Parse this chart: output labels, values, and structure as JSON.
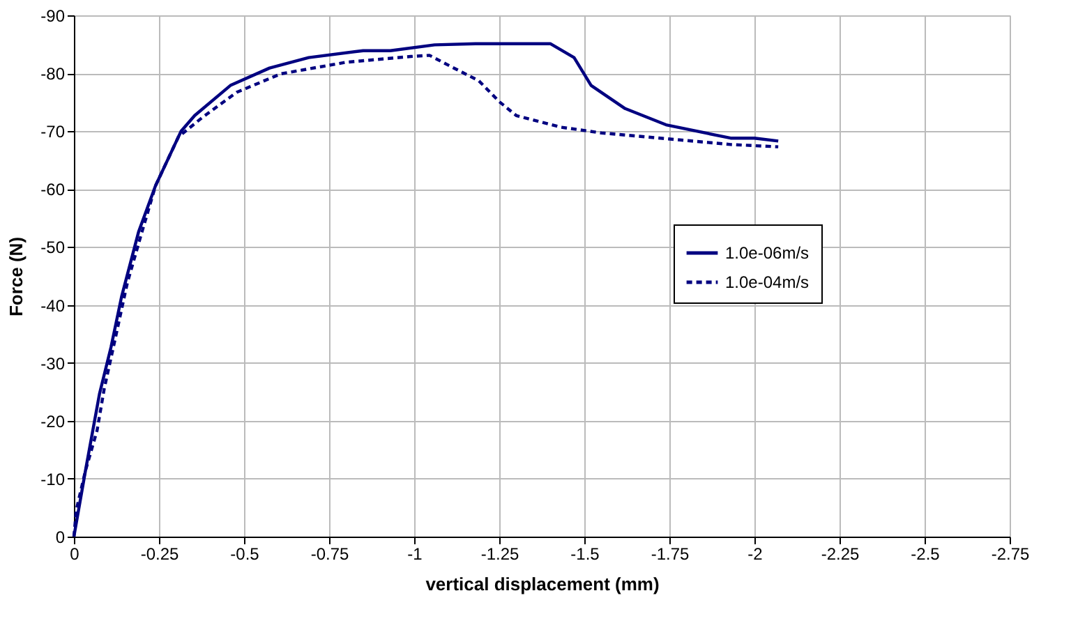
{
  "chart_data": {
    "type": "line",
    "xlabel": "vertical displacement (mm)",
    "ylabel": "Force (N)",
    "xlim": [
      0,
      -2.75
    ],
    "ylim": [
      0,
      -90
    ],
    "xticks": [
      0,
      -0.25,
      -0.5,
      -0.75,
      -1,
      -1.25,
      -1.5,
      -1.75,
      -2,
      -2.25,
      -2.5,
      -2.75
    ],
    "yticks": [
      0,
      -10,
      -20,
      -30,
      -40,
      -50,
      -60,
      -70,
      -80,
      -90
    ],
    "grid": true,
    "legend": "right",
    "marker": "none",
    "series": [
      {
        "name": "1.0e-06m/s",
        "color": "#000080",
        "line_style": "solid",
        "x": [
          0,
          -0.034,
          -0.075,
          -0.109,
          -0.14,
          -0.19,
          -0.24,
          -0.315,
          -0.355,
          -0.46,
          -0.575,
          -0.69,
          -0.85,
          -0.93,
          -1.06,
          -1.18,
          -1.4,
          -1.47,
          -1.52,
          -1.62,
          -1.74,
          -1.93,
          -2.0,
          -2.07
        ],
        "values": [
          0,
          -11.4,
          -24.6,
          -32.7,
          -41.4,
          -52.6,
          -60.6,
          -70,
          -72.7,
          -77.9,
          -80.9,
          -82.7,
          -83.9,
          -83.9,
          -84.9,
          -85.1,
          -85.1,
          -82.7,
          -77.9,
          -73.9,
          -71.1,
          -68.8,
          -68.8,
          -68.3
        ]
      },
      {
        "name": "1.0e-04m/s",
        "color": "#000080",
        "line_style": "dotted",
        "x": [
          0,
          -0.007,
          -0.034,
          -0.068,
          -0.089,
          -0.116,
          -0.157,
          -0.198,
          -0.24,
          -0.307,
          -0.376,
          -0.478,
          -0.608,
          -0.8,
          -0.99,
          -1.045,
          -1.11,
          -1.19,
          -1.25,
          -1.3,
          -1.43,
          -1.55,
          -1.74,
          -1.93,
          -2.07
        ],
        "values": [
          0,
          -4.6,
          -11.4,
          -18.3,
          -25.5,
          -32.7,
          -43.8,
          -52.2,
          -60.6,
          -69,
          -72.3,
          -76.7,
          -79.9,
          -81.9,
          -82.9,
          -83.1,
          -81.1,
          -78.7,
          -75.1,
          -72.7,
          -70.7,
          -69.7,
          -68.7,
          -67.7,
          -67.3
        ]
      }
    ]
  }
}
